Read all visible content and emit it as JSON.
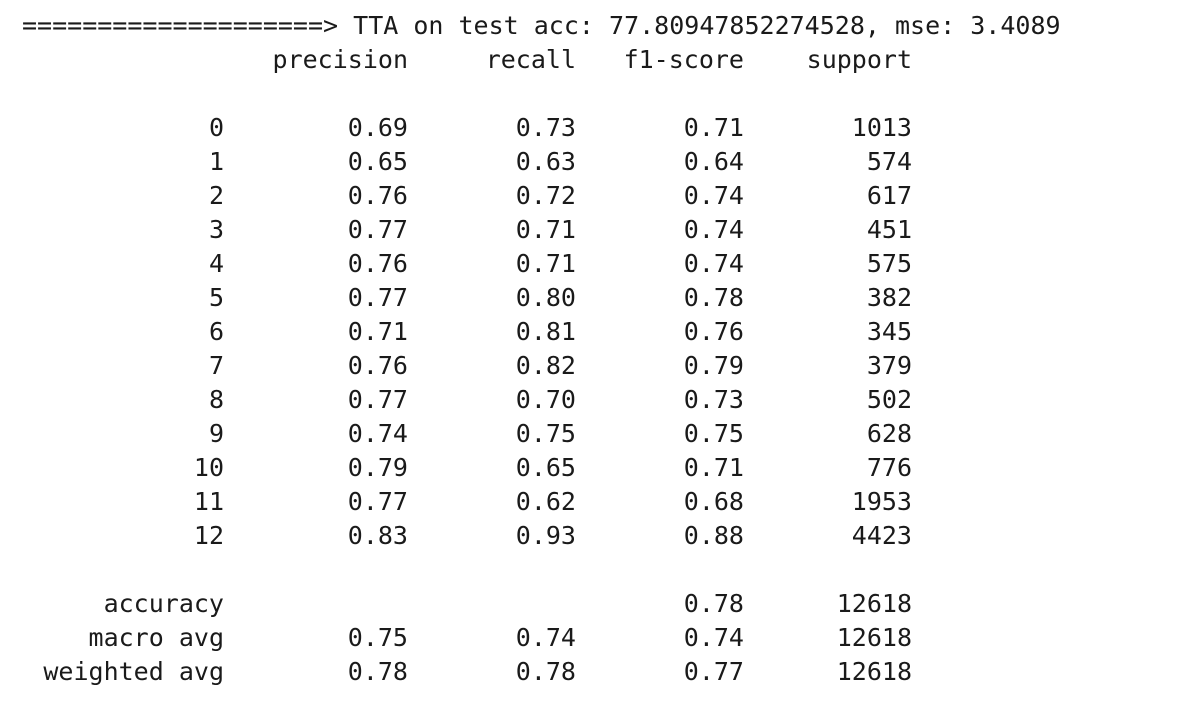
{
  "banner": {
    "arrow": "====================>",
    "text": "TTA on test acc: 77.80947852274528, mse: 3.4089"
  },
  "report": {
    "columns": [
      "precision",
      "recall",
      "f1-score",
      "support"
    ],
    "rows": [
      {
        "label": "0",
        "precision": "0.69",
        "recall": "0.73",
        "f1": "0.71",
        "support": "1013"
      },
      {
        "label": "1",
        "precision": "0.65",
        "recall": "0.63",
        "f1": "0.64",
        "support": "574"
      },
      {
        "label": "2",
        "precision": "0.76",
        "recall": "0.72",
        "f1": "0.74",
        "support": "617"
      },
      {
        "label": "3",
        "precision": "0.77",
        "recall": "0.71",
        "f1": "0.74",
        "support": "451"
      },
      {
        "label": "4",
        "precision": "0.76",
        "recall": "0.71",
        "f1": "0.74",
        "support": "575"
      },
      {
        "label": "5",
        "precision": "0.77",
        "recall": "0.80",
        "f1": "0.78",
        "support": "382"
      },
      {
        "label": "6",
        "precision": "0.71",
        "recall": "0.81",
        "f1": "0.76",
        "support": "345"
      },
      {
        "label": "7",
        "precision": "0.76",
        "recall": "0.82",
        "f1": "0.79",
        "support": "379"
      },
      {
        "label": "8",
        "precision": "0.77",
        "recall": "0.70",
        "f1": "0.73",
        "support": "502"
      },
      {
        "label": "9",
        "precision": "0.74",
        "recall": "0.75",
        "f1": "0.75",
        "support": "628"
      },
      {
        "label": "10",
        "precision": "0.79",
        "recall": "0.65",
        "f1": "0.71",
        "support": "776"
      },
      {
        "label": "11",
        "precision": "0.77",
        "recall": "0.62",
        "f1": "0.68",
        "support": "1953"
      },
      {
        "label": "12",
        "precision": "0.83",
        "recall": "0.93",
        "f1": "0.88",
        "support": "4423"
      }
    ],
    "summary": [
      {
        "label": "accuracy",
        "precision": "",
        "recall": "",
        "f1": "0.78",
        "support": "12618"
      },
      {
        "label": "macro avg",
        "precision": "0.75",
        "recall": "0.74",
        "f1": "0.74",
        "support": "12618"
      },
      {
        "label": "weighted avg",
        "precision": "0.78",
        "recall": "0.78",
        "f1": "0.77",
        "support": "12618"
      }
    ]
  }
}
